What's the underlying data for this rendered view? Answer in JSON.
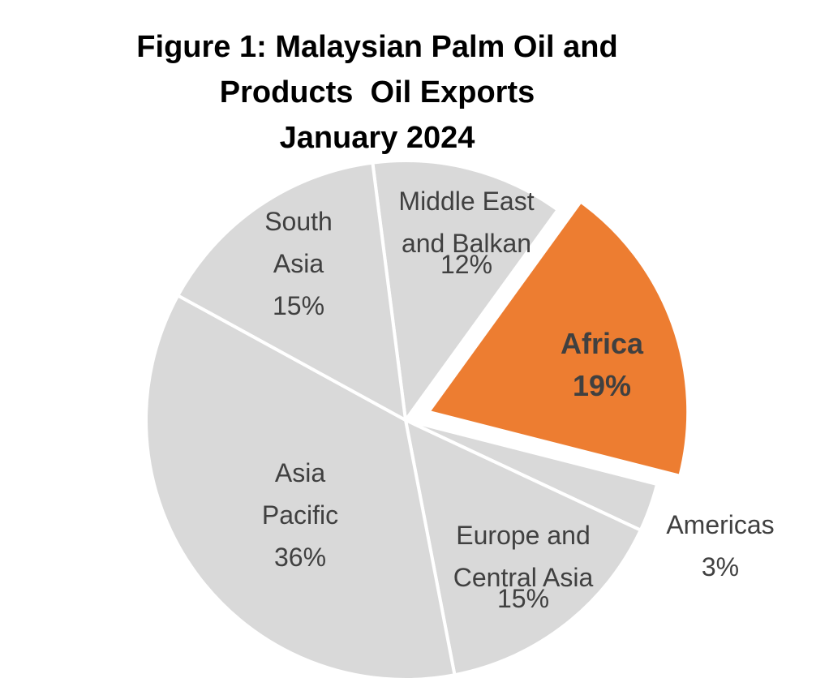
{
  "chart_data": {
    "type": "pie",
    "title": "Figure 1: Malaysian Palm Oil and\nProducts  Oil Exports\nJanuary 2024",
    "categories": [
      "Middle East and Balkan",
      "Africa",
      "Americas",
      "Europe and Central Asia",
      "Asia Pacific",
      "South Asia"
    ],
    "values": [
      12,
      19,
      3,
      15,
      36,
      15
    ],
    "value_labels": [
      "12%",
      "19%",
      "3%",
      "15%",
      "36%",
      "15%"
    ],
    "colors": [
      "#d9d9d9",
      "#ed7d31",
      "#d9d9d9",
      "#d9d9d9",
      "#d9d9d9",
      "#d9d9d9"
    ]
  }
}
